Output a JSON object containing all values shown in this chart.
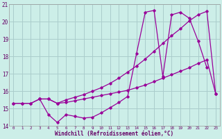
{
  "bg_color": "#cceee8",
  "grid_color": "#aacccc",
  "line_color": "#990099",
  "xlim": [
    -0.5,
    23.5
  ],
  "ylim": [
    14,
    21
  ],
  "yticks": [
    14,
    15,
    16,
    17,
    18,
    19,
    20,
    21
  ],
  "xticks": [
    0,
    1,
    2,
    3,
    4,
    5,
    6,
    7,
    8,
    9,
    10,
    11,
    12,
    13,
    14,
    15,
    16,
    17,
    18,
    19,
    20,
    21,
    22,
    23
  ],
  "xlabel": "Windchill (Refroidissement éolien,°C)",
  "line1_x": [
    0,
    1,
    2,
    3,
    4,
    5,
    6,
    7,
    8,
    9,
    10,
    11,
    12,
    13,
    14,
    15,
    16,
    17,
    18,
    19,
    20,
    21,
    22,
    23
  ],
  "line1_y": [
    15.3,
    15.3,
    15.3,
    15.55,
    15.55,
    15.3,
    15.35,
    15.45,
    15.55,
    15.65,
    15.75,
    15.85,
    15.95,
    16.05,
    16.2,
    16.35,
    16.55,
    16.75,
    16.95,
    17.15,
    17.35,
    17.6,
    17.8,
    15.85
  ],
  "line2_x": [
    0,
    1,
    2,
    3,
    4,
    5,
    6,
    7,
    8,
    9,
    10,
    11,
    12,
    13,
    14,
    15,
    16,
    17,
    18,
    19,
    20,
    21,
    22,
    23
  ],
  "line2_y": [
    15.3,
    15.3,
    15.3,
    15.55,
    15.55,
    15.3,
    15.5,
    15.65,
    15.8,
    16.0,
    16.2,
    16.45,
    16.75,
    17.1,
    17.45,
    17.85,
    18.3,
    18.75,
    19.2,
    19.6,
    20.05,
    20.4,
    20.6,
    15.85
  ],
  "line3_x": [
    3,
    4,
    5,
    6,
    7,
    8,
    9,
    10,
    11,
    12,
    13,
    14,
    15,
    16,
    17,
    18,
    19,
    20,
    21,
    22
  ],
  "line3_y": [
    15.55,
    14.65,
    14.2,
    14.65,
    14.55,
    14.45,
    14.5,
    14.75,
    15.05,
    15.35,
    15.7,
    18.15,
    20.55,
    20.65,
    16.85,
    20.4,
    20.55,
    20.2,
    18.9,
    17.35
  ]
}
